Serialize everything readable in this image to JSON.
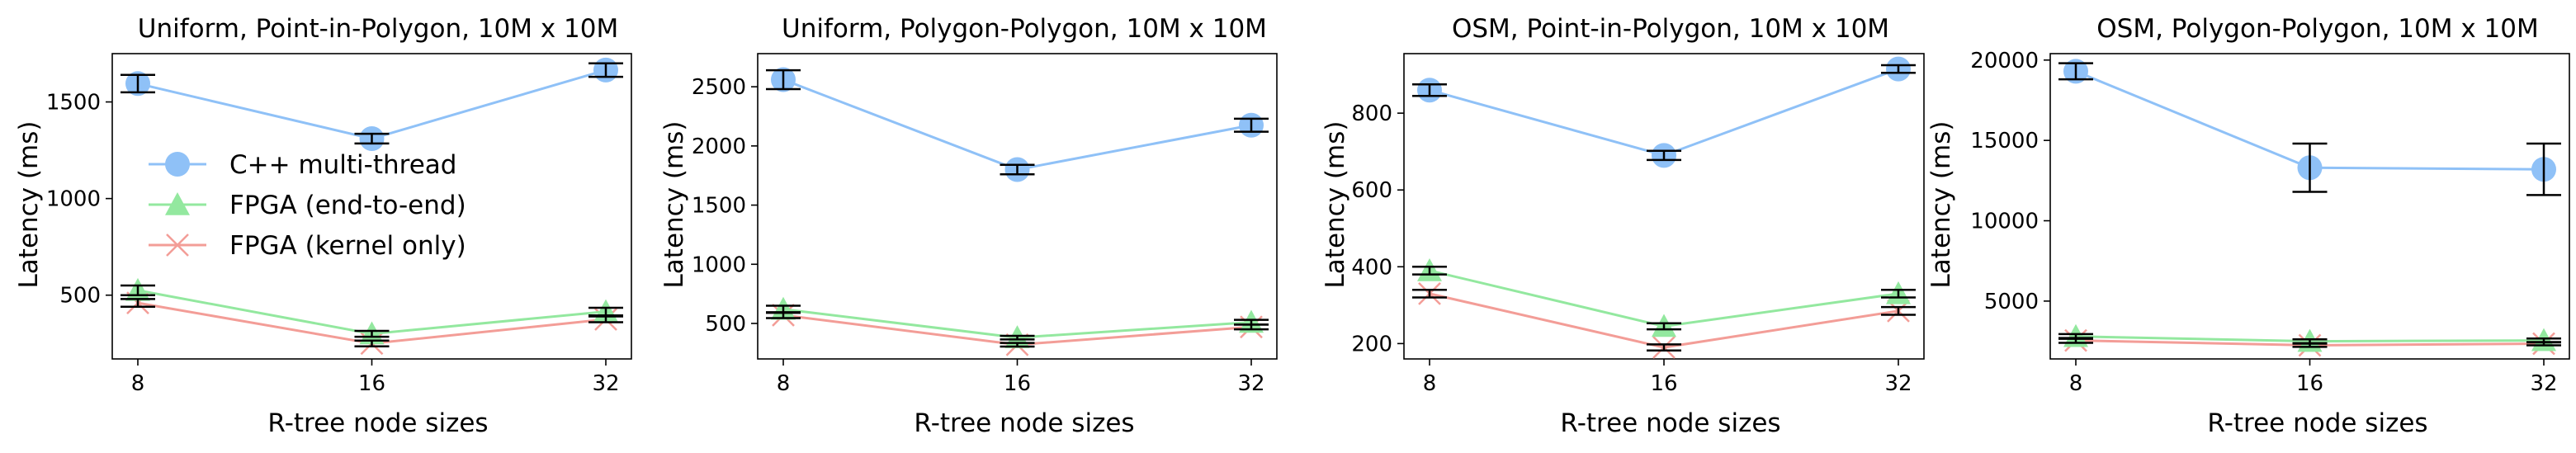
{
  "colors": {
    "cpp": "#8fc1f7",
    "fpga_e2e": "#93e89f",
    "fpga_kernel": "#f39d97",
    "errorbar": "#000000",
    "axis": "#000000"
  },
  "legend": {
    "location": "center-left of first panel",
    "entries": [
      {
        "label": "C++ multi-thread",
        "marker": "circle",
        "series": "cpp"
      },
      {
        "label": "FPGA (end-to-end)",
        "marker": "triangle",
        "series": "fpga_e2e"
      },
      {
        "label": "FPGA (kernel only)",
        "marker": "x",
        "series": "fpga_kernel"
      }
    ]
  },
  "chart_data": [
    {
      "type": "line",
      "title": "Uniform, Point-in-Polygon, 10M x 10M",
      "xlabel": "R-tree node sizes",
      "ylabel": "Latency (ms)",
      "x": [
        "8",
        "16",
        "32"
      ],
      "ylim": [
        170,
        1750
      ],
      "yticks": [
        500,
        1000,
        1500
      ],
      "series": [
        {
          "key": "cpp",
          "name": "C++ multi-thread",
          "values": [
            1595,
            1310,
            1665
          ],
          "err": [
            45,
            25,
            35
          ]
        },
        {
          "key": "fpga_e2e",
          "name": "FPGA (end-to-end)",
          "values": [
            525,
            300,
            415
          ],
          "err": [
            25,
            15,
            20
          ]
        },
        {
          "key": "fpga_kernel",
          "name": "FPGA (kernel only)",
          "values": [
            460,
            250,
            375
          ],
          "err": [
            20,
            15,
            15
          ]
        }
      ]
    },
    {
      "type": "line",
      "title": "Uniform, Polygon-Polygon, 10M x 10M",
      "xlabel": "R-tree node sizes",
      "ylabel": "Latency (ms)",
      "x": [
        "8",
        "16",
        "32"
      ],
      "ylim": [
        200,
        2780
      ],
      "yticks": [
        500,
        1000,
        1500,
        2000,
        2500
      ],
      "series": [
        {
          "key": "cpp",
          "name": "C++ multi-thread",
          "values": [
            2560,
            1800,
            2175
          ],
          "err": [
            80,
            40,
            55
          ]
        },
        {
          "key": "fpga_e2e",
          "name": "FPGA (end-to-end)",
          "values": [
            620,
            380,
            510
          ],
          "err": [
            30,
            15,
            20
          ]
        },
        {
          "key": "fpga_kernel",
          "name": "FPGA (kernel only)",
          "values": [
            570,
            320,
            470
          ],
          "err": [
            25,
            15,
            20
          ]
        }
      ]
    },
    {
      "type": "line",
      "title": "OSM, Point-in-Polygon, 10M x 10M",
      "xlabel": "R-tree node sizes",
      "ylabel": "Latency (ms)",
      "x": [
        "8",
        "16",
        "32"
      ],
      "ylim": [
        160,
        955
      ],
      "yticks": [
        200,
        400,
        600,
        800
      ],
      "series": [
        {
          "key": "cpp",
          "name": "C++ multi-thread",
          "values": [
            860,
            690,
            915
          ],
          "err": [
            15,
            12,
            10
          ]
        },
        {
          "key": "fpga_e2e",
          "name": "FPGA (end-to-end)",
          "values": [
            390,
            245,
            330
          ],
          "err": [
            10,
            8,
            10
          ]
        },
        {
          "key": "fpga_kernel",
          "name": "FPGA (kernel only)",
          "values": [
            330,
            190,
            285
          ],
          "err": [
            10,
            8,
            10
          ]
        }
      ]
    },
    {
      "type": "line",
      "title": "OSM, Polygon-Polygon, 10M x 10M",
      "xlabel": "R-tree node sizes",
      "ylabel": "Latency (ms)",
      "x": [
        "8",
        "16",
        "32"
      ],
      "ylim": [
        1400,
        20400
      ],
      "yticks": [
        5000,
        10000,
        15000,
        20000
      ],
      "series": [
        {
          "key": "cpp",
          "name": "C++ multi-thread",
          "values": [
            19300,
            13300,
            13200
          ],
          "err": [
            500,
            1500,
            1600
          ]
        },
        {
          "key": "fpga_e2e",
          "name": "FPGA (end-to-end)",
          "values": [
            2800,
            2500,
            2550
          ],
          "err": [
            150,
            120,
            120
          ]
        },
        {
          "key": "fpga_kernel",
          "name": "FPGA (kernel only)",
          "values": [
            2550,
            2250,
            2350
          ],
          "err": [
            150,
            100,
            100
          ]
        }
      ]
    }
  ]
}
